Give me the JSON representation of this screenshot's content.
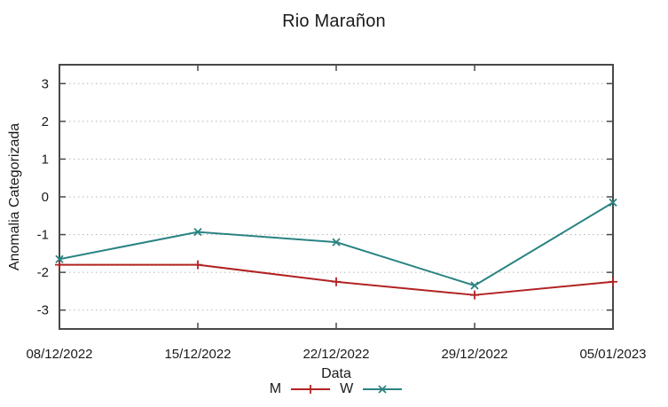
{
  "chart_data": {
    "type": "line",
    "title": "Rio Marañon",
    "xlabel": "Data",
    "ylabel": "Anomalia Categorizada",
    "categories": [
      "08/12/2022",
      "15/12/2022",
      "22/12/2022",
      "29/12/2022",
      "05/01/2023"
    ],
    "series": [
      {
        "name": "M",
        "color": "#b22222",
        "marker": "plus",
        "values": [
          -1.8,
          -1.8,
          -2.25,
          -2.6,
          -2.25
        ]
      },
      {
        "name": "W",
        "color": "#2a8383",
        "marker": "cross",
        "values": [
          -1.65,
          -0.93,
          -1.2,
          -2.35,
          -0.15
        ]
      }
    ],
    "ylim": [
      -3.5,
      3.5
    ],
    "yticks": [
      -3,
      -2,
      -1,
      0,
      1,
      2,
      3
    ],
    "grid": true,
    "grid_style": "dotted",
    "legend_position": "bottom-center"
  },
  "colors": {
    "background": "#ffffff",
    "border": "#484848",
    "grid": "#b5b5b5",
    "text": "#1a1a1a"
  }
}
